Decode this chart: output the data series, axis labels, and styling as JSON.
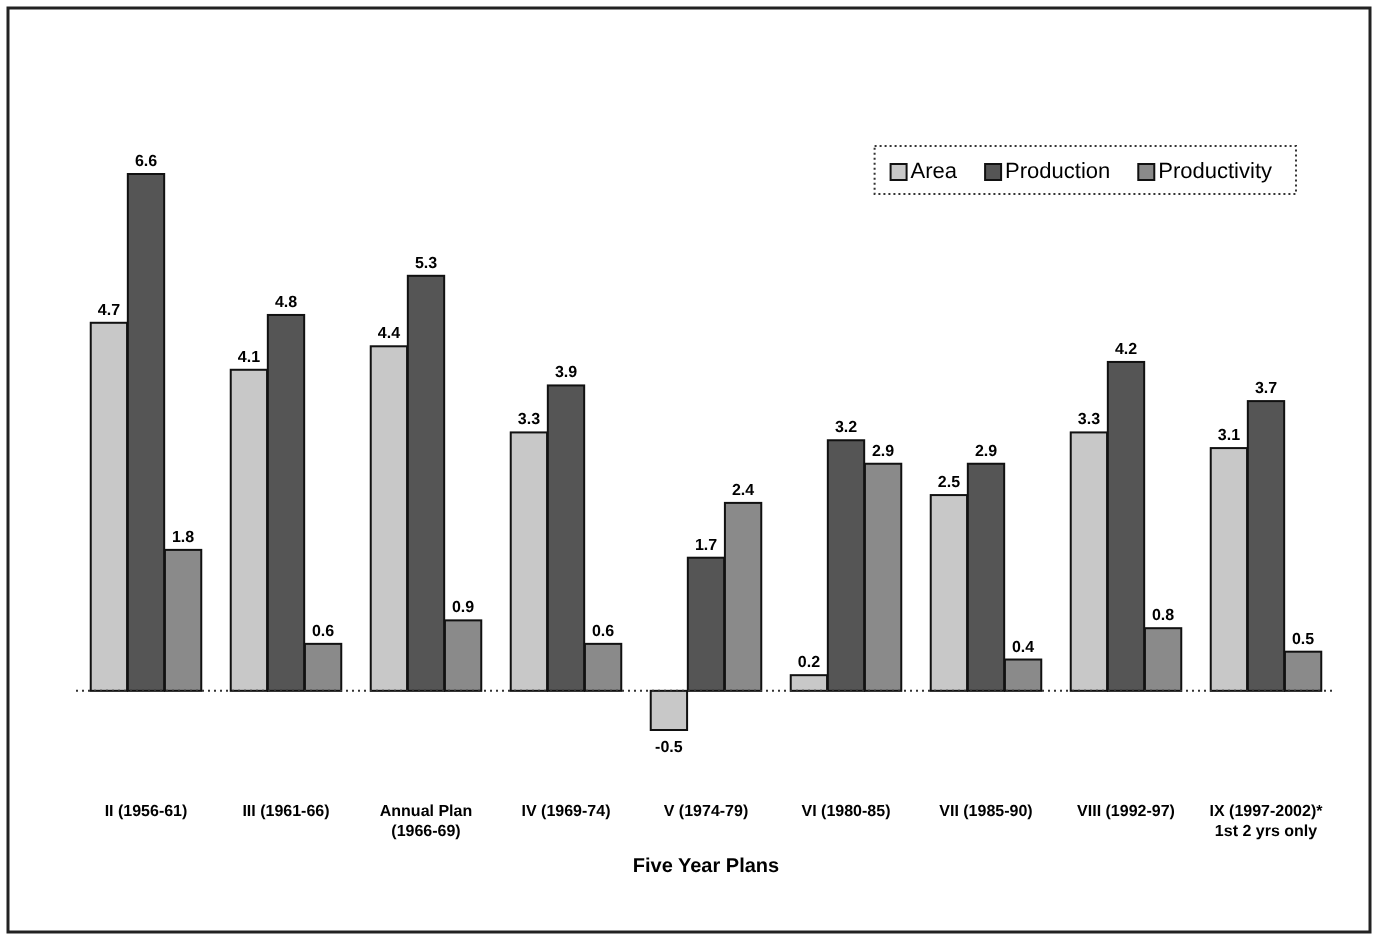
{
  "chart_data": {
    "type": "bar",
    "xlabel": "Five Year Plans",
    "categories": [
      "II (1956-61)",
      "III (1961-66)",
      "Annual Plan (1966-69)",
      "IV (1969-74)",
      "V (1974-79)",
      "VI (1980-85)",
      "VII (1985-90)",
      "VIII (1992-97)",
      "IX (1997-2002)* 1st 2 yrs only"
    ],
    "series": [
      {
        "name": "Area",
        "color": "#c8c8c8",
        "values": [
          4.7,
          4.1,
          4.4,
          3.3,
          -0.5,
          0.2,
          2.5,
          3.3,
          3.1
        ]
      },
      {
        "name": "Production",
        "color": "#555555",
        "values": [
          6.6,
          4.8,
          5.3,
          3.9,
          1.7,
          3.2,
          2.9,
          4.2,
          3.7
        ]
      },
      {
        "name": "Productivity",
        "color": "#8a8a8a",
        "values": [
          1.8,
          0.6,
          0.9,
          0.6,
          2.4,
          2.9,
          0.4,
          0.8,
          0.5
        ]
      }
    ],
    "ref_lines": [
      {
        "axis": "y",
        "value": 0,
        "color": "#333333",
        "line_style": "dotted"
      }
    ],
    "data_labels": true,
    "legend": "top right"
  }
}
